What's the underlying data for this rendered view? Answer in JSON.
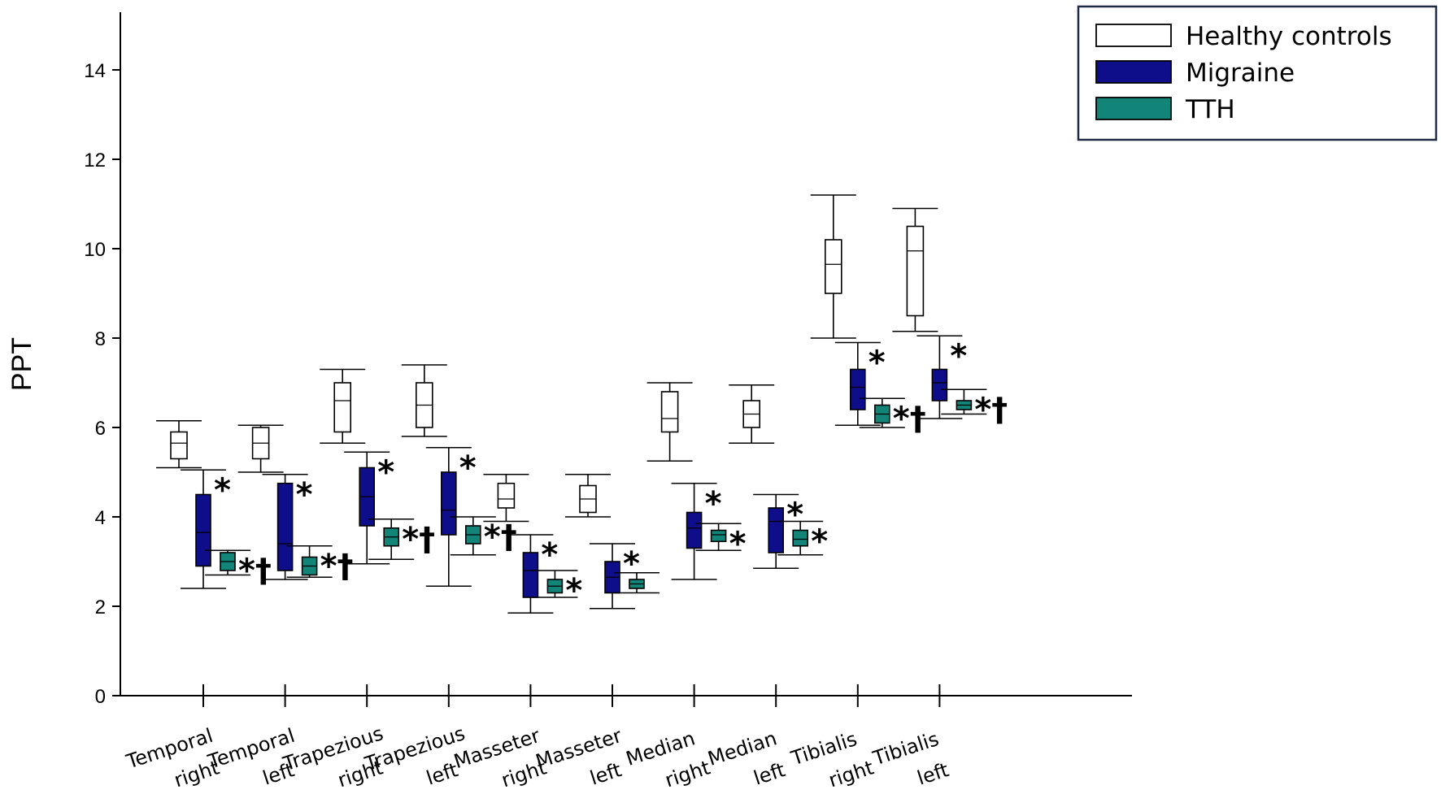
{
  "chart_data": {
    "type": "boxplot",
    "ylabel": "PPT",
    "xlabel": "",
    "ylim": [
      0,
      15
    ],
    "yticks": [
      0,
      2,
      4,
      6,
      8,
      10,
      12,
      14
    ],
    "categories": [
      [
        "Temporal",
        "right"
      ],
      [
        "Temporal",
        "left"
      ],
      [
        "Trapezious",
        "right"
      ],
      [
        "Trapezious",
        "left"
      ],
      [
        "Masseter",
        "right"
      ],
      [
        "Masseter",
        "left"
      ],
      [
        "Median",
        "right"
      ],
      [
        "Median",
        "left"
      ],
      [
        "Tibialis",
        "right"
      ],
      [
        "Tibialis",
        "left"
      ]
    ],
    "series": [
      {
        "name": "Healthy controls",
        "color": "#ffffff",
        "boxes": [
          {
            "min": 5.1,
            "q1": 5.3,
            "median": 5.65,
            "q3": 5.9,
            "max": 6.15,
            "marker": ""
          },
          {
            "min": 5.0,
            "q1": 5.3,
            "median": 5.65,
            "q3": 6.0,
            "max": 6.05,
            "marker": ""
          },
          {
            "min": 5.65,
            "q1": 5.9,
            "median": 6.6,
            "q3": 7.0,
            "max": 7.3,
            "marker": ""
          },
          {
            "min": 5.8,
            "q1": 6.0,
            "median": 6.5,
            "q3": 7.0,
            "max": 7.4,
            "marker": ""
          },
          {
            "min": 3.9,
            "q1": 4.2,
            "median": 4.4,
            "q3": 4.75,
            "max": 4.95,
            "marker": ""
          },
          {
            "min": 4.0,
            "q1": 4.1,
            "median": 4.4,
            "q3": 4.7,
            "max": 4.95,
            "marker": ""
          },
          {
            "min": 5.25,
            "q1": 5.9,
            "median": 6.2,
            "q3": 6.8,
            "max": 7.0,
            "marker": ""
          },
          {
            "min": 5.65,
            "q1": 6.0,
            "median": 6.3,
            "q3": 6.6,
            "max": 6.95,
            "marker": ""
          },
          {
            "min": 8.0,
            "q1": 9.0,
            "median": 9.65,
            "q3": 10.2,
            "max": 11.2,
            "marker": ""
          },
          {
            "min": 8.15,
            "q1": 8.5,
            "median": 9.95,
            "q3": 10.5,
            "max": 10.9,
            "marker": ""
          }
        ]
      },
      {
        "name": "Migraine",
        "color": "#0f0e8a",
        "boxes": [
          {
            "min": 2.4,
            "q1": 2.9,
            "median": 3.65,
            "q3": 4.5,
            "max": 5.05,
            "marker": "*"
          },
          {
            "min": 2.6,
            "q1": 2.8,
            "median": 3.4,
            "q3": 4.75,
            "max": 4.95,
            "marker": "*"
          },
          {
            "min": 2.95,
            "q1": 3.8,
            "median": 4.45,
            "q3": 5.1,
            "max": 5.45,
            "marker": "*"
          },
          {
            "min": 2.45,
            "q1": 3.6,
            "median": 4.15,
            "q3": 5.0,
            "max": 5.55,
            "marker": "*"
          },
          {
            "min": 1.85,
            "q1": 2.2,
            "median": 2.8,
            "q3": 3.2,
            "max": 3.6,
            "marker": "*"
          },
          {
            "min": 1.95,
            "q1": 2.3,
            "median": 2.65,
            "q3": 3.0,
            "max": 3.4,
            "marker": "*"
          },
          {
            "min": 2.6,
            "q1": 3.3,
            "median": 3.75,
            "q3": 4.1,
            "max": 4.75,
            "marker": "*"
          },
          {
            "min": 2.85,
            "q1": 3.2,
            "median": 3.9,
            "q3": 4.2,
            "max": 4.5,
            "marker": "*"
          },
          {
            "min": 6.05,
            "q1": 6.4,
            "median": 6.9,
            "q3": 7.3,
            "max": 7.9,
            "marker": "*"
          },
          {
            "min": 6.2,
            "q1": 6.6,
            "median": 7.0,
            "q3": 7.3,
            "max": 8.05,
            "marker": "*"
          }
        ]
      },
      {
        "name": "TTH",
        "color": "#138478",
        "boxes": [
          {
            "min": 2.7,
            "q1": 2.8,
            "median": 3.0,
            "q3": 3.2,
            "max": 3.25,
            "marker": "*†"
          },
          {
            "min": 2.65,
            "q1": 2.7,
            "median": 2.9,
            "q3": 3.1,
            "max": 3.35,
            "marker": "*†"
          },
          {
            "min": 3.05,
            "q1": 3.35,
            "median": 3.55,
            "q3": 3.75,
            "max": 3.95,
            "marker": "*†"
          },
          {
            "min": 3.15,
            "q1": 3.4,
            "median": 3.6,
            "q3": 3.8,
            "max": 4.0,
            "marker": "*†"
          },
          {
            "min": 2.2,
            "q1": 2.3,
            "median": 2.45,
            "q3": 2.6,
            "max": 2.8,
            "marker": "*"
          },
          {
            "min": 2.3,
            "q1": 2.4,
            "median": 2.5,
            "q3": 2.6,
            "max": 2.75,
            "marker": ""
          },
          {
            "min": 3.25,
            "q1": 3.45,
            "median": 3.6,
            "q3": 3.7,
            "max": 3.85,
            "marker": "*"
          },
          {
            "min": 3.15,
            "q1": 3.35,
            "median": 3.5,
            "q3": 3.7,
            "max": 3.9,
            "marker": "*"
          },
          {
            "min": 6.0,
            "q1": 6.1,
            "median": 6.3,
            "q3": 6.5,
            "max": 6.65,
            "marker": "*†"
          },
          {
            "min": 6.3,
            "q1": 6.4,
            "median": 6.5,
            "q3": 6.6,
            "max": 6.85,
            "marker": "*†"
          }
        ]
      }
    ],
    "legend": {
      "position": "top-right"
    }
  }
}
